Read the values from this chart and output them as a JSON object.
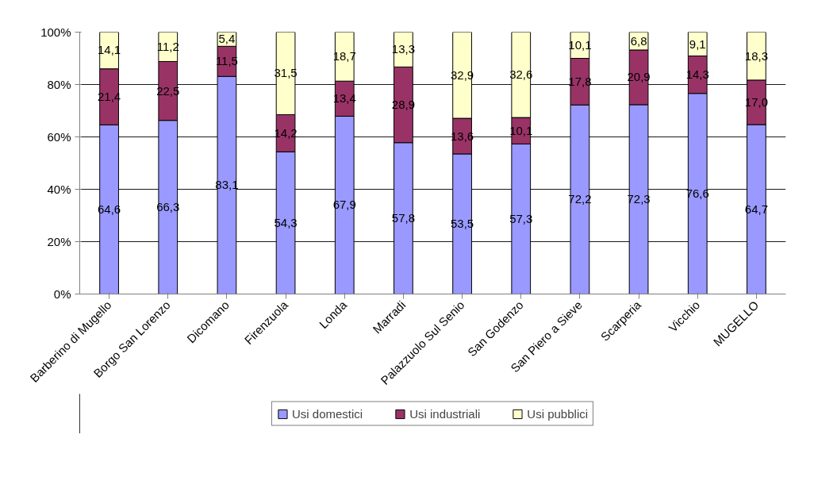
{
  "chart_data": {
    "type": "bar",
    "stacked": true,
    "categories": [
      "Barberino di Mugello",
      "Borgo San Lorenzo",
      "Dicomano",
      "Firenzuola",
      "Londa",
      "Marradi",
      "Palazzuolo Sul Senio",
      "San Godenzo",
      "San Piero a Sieve",
      "Scarperia",
      "Vicchio",
      "MUGELLO"
    ],
    "series": [
      {
        "name": "Usi domestici",
        "color": "#9999ff",
        "values": [
          64.6,
          66.3,
          83.1,
          54.3,
          67.9,
          57.8,
          53.5,
          57.3,
          72.2,
          72.3,
          76.6,
          64.7
        ],
        "value_labels": [
          "64,6",
          "66,3",
          "83,1",
          "54,3",
          "67,9",
          "57,8",
          "53,5",
          "57,3",
          "72,2",
          "72,3",
          "76,6",
          "64,7"
        ]
      },
      {
        "name": "Usi industriali",
        "color": "#993366",
        "values": [
          21.4,
          22.5,
          11.5,
          14.2,
          13.4,
          28.9,
          13.6,
          10.1,
          17.8,
          20.9,
          14.3,
          17.0
        ],
        "value_labels": [
          "21,4",
          "22,5",
          "11,5",
          "14,2",
          "13,4",
          "28,9",
          "13,6",
          "10,1",
          "17,8",
          "20,9",
          "14,3",
          "17,0"
        ]
      },
      {
        "name": "Usi pubblici",
        "color": "#ffffcc",
        "values": [
          14.1,
          11.2,
          5.4,
          31.5,
          18.7,
          13.3,
          32.9,
          32.6,
          10.1,
          6.8,
          9.1,
          18.3
        ],
        "value_labels": [
          "14,1",
          "11,2",
          "5,4",
          "31,5",
          "18,7",
          "13,3",
          "32,9",
          "32,6",
          "10,1",
          "6,8",
          "9,1",
          "18,3"
        ]
      }
    ],
    "ylim": [
      0,
      100
    ],
    "yticks": [
      {
        "value": 0,
        "label": "0%"
      },
      {
        "value": 20,
        "label": "20%"
      },
      {
        "value": 40,
        "label": "40%"
      },
      {
        "value": 60,
        "label": "60%"
      },
      {
        "value": 80,
        "label": "80%"
      },
      {
        "value": 100,
        "label": "100%"
      }
    ],
    "grid": "y",
    "legend": "bottom"
  }
}
